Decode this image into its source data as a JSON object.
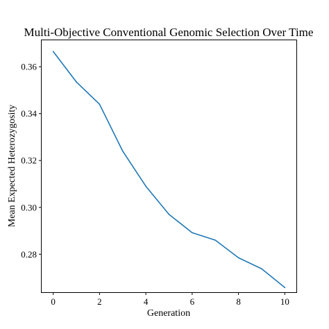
{
  "chart_data": {
    "type": "line",
    "title": "Multi-Objective Conventional Genomic Selection Over Time",
    "xlabel": "Generation",
    "ylabel": "Mean Expected Heterozygosity",
    "x": [
      0,
      1,
      2,
      3,
      4,
      5,
      6,
      7,
      8,
      9,
      10
    ],
    "series": [
      {
        "values": [
          0.3665,
          0.3535,
          0.344,
          0.324,
          0.309,
          0.297,
          0.2892,
          0.286,
          0.2785,
          0.2738,
          0.2658
        ],
        "color": "#1f77b4"
      }
    ],
    "xlim": [
      -0.5,
      10.5
    ],
    "ylim": [
      0.2638,
      0.3713
    ],
    "x_ticks": [
      0,
      2,
      4,
      6,
      8,
      10
    ],
    "x_tick_labels": [
      "0",
      "2",
      "4",
      "6",
      "8",
      "10"
    ],
    "y_ticks": [
      0.28,
      0.3,
      0.32,
      0.34,
      0.36
    ],
    "y_tick_labels": [
      "0.28",
      "0.30",
      "0.32",
      "0.34",
      "0.36"
    ],
    "grid": false,
    "legend": false
  }
}
